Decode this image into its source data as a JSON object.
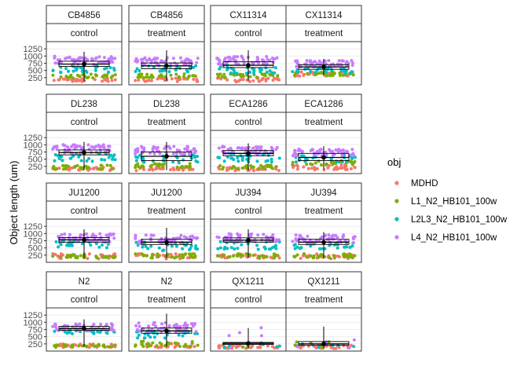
{
  "chart_data": {
    "type": "scatter",
    "title": "",
    "xlabel": "",
    "ylabel": "Object length (um)",
    "ylim": [
      0,
      1500
    ],
    "yticks": [
      250,
      500,
      750,
      1000,
      1250
    ],
    "grid": true,
    "legend": {
      "title": "obj",
      "placement": "right",
      "entries": [
        {
          "name": "MDHD",
          "color": "#F8766D"
        },
        {
          "name": "L1_N2_HB101_100w",
          "color": "#7CAE00"
        },
        {
          "name": "L2L3_N2_HB101_100w",
          "color": "#00BFC4"
        },
        {
          "name": "L4_N2_HB101_100w",
          "color": "#C77CFF"
        }
      ]
    },
    "panels": [
      {
        "strain": "CB4856",
        "condition": "control",
        "median": 720,
        "box": [
          640,
          820
        ],
        "whisker": [
          120,
          1150
        ],
        "bands": {
          "MDHD": [
            100,
            220
          ],
          "L1_N2_HB101_100w": [
            240,
            380
          ],
          "L2L3_N2_HB101_100w": [
            400,
            700
          ],
          "L4_N2_HB101_100w": [
            700,
            1000
          ]
        }
      },
      {
        "strain": "CB4856",
        "condition": "treatment",
        "median": 660,
        "box": [
          560,
          760
        ],
        "whisker": [
          130,
          1200
        ],
        "bands": {
          "MDHD": [
            110,
            230
          ],
          "L1_N2_HB101_100w": [
            250,
            390
          ],
          "L2L3_N2_HB101_100w": [
            420,
            680
          ],
          "L4_N2_HB101_100w": [
            680,
            950
          ]
        }
      },
      {
        "strain": "CX11314",
        "condition": "control",
        "median": 680,
        "box": [
          600,
          800
        ],
        "whisker": [
          150,
          1200
        ],
        "bands": {
          "MDHD": [
            100,
            240
          ],
          "L1_N2_HB101_100w": [
            250,
            380
          ],
          "L2L3_N2_HB101_100w": [
            400,
            720
          ],
          "L4_N2_HB101_100w": [
            700,
            1000
          ]
        }
      },
      {
        "strain": "CX11314",
        "condition": "treatment",
        "median": 620,
        "box": [
          540,
          700
        ],
        "whisker": [
          350,
          900
        ],
        "bands": {
          "MDHD": [
            300,
            450
          ],
          "L1_N2_HB101_100w": [
            320,
            460
          ],
          "L2L3_N2_HB101_100w": [
            400,
            650
          ],
          "L4_N2_HB101_100w": [
            620,
            850
          ]
        }
      },
      {
        "strain": "DL238",
        "condition": "control",
        "median": 730,
        "box": [
          650,
          820
        ],
        "whisker": [
          120,
          1100
        ],
        "bands": {
          "MDHD": [
            100,
            220
          ],
          "L1_N2_HB101_100w": [
            150,
            300
          ],
          "L2L3_N2_HB101_100w": [
            400,
            700
          ],
          "L4_N2_HB101_100w": [
            700,
            1000
          ]
        }
      },
      {
        "strain": "DL238",
        "condition": "treatment",
        "median": 600,
        "box": [
          450,
          750
        ],
        "whisker": [
          120,
          1100
        ],
        "bands": {
          "MDHD": [
            100,
            220
          ],
          "L1_N2_HB101_100w": [
            200,
            350
          ],
          "L2L3_N2_HB101_100w": [
            350,
            650
          ],
          "L4_N2_HB101_100w": [
            650,
            950
          ]
        }
      },
      {
        "strain": "ECA1286",
        "condition": "control",
        "median": 700,
        "box": [
          620,
          800
        ],
        "whisker": [
          120,
          1050
        ],
        "bands": {
          "MDHD": [
            100,
            250
          ],
          "L1_N2_HB101_100w": [
            150,
            300
          ],
          "L2L3_N2_HB101_100w": [
            400,
            700
          ],
          "L4_N2_HB101_100w": [
            700,
            950
          ]
        }
      },
      {
        "strain": "ECA1286",
        "condition": "treatment",
        "median": 560,
        "box": [
          450,
          700
        ],
        "whisker": [
          150,
          950
        ],
        "bands": {
          "MDHD": [
            120,
            300
          ],
          "L1_N2_HB101_100w": [
            300,
            450
          ],
          "L2L3_N2_HB101_100w": [
            400,
            650
          ],
          "L4_N2_HB101_100w": [
            600,
            850
          ]
        }
      },
      {
        "strain": "JU1200",
        "condition": "control",
        "median": 780,
        "box": [
          700,
          860
        ],
        "whisker": [
          150,
          1150
        ],
        "bands": {
          "MDHD": [
            120,
            300
          ],
          "L1_N2_HB101_100w": [
            150,
            250
          ],
          "L2L3_N2_HB101_100w": [
            500,
            750
          ],
          "L4_N2_HB101_100w": [
            700,
            1000
          ]
        }
      },
      {
        "strain": "JU1200",
        "condition": "treatment",
        "median": 700,
        "box": [
          620,
          800
        ],
        "whisker": [
          150,
          1200
        ],
        "bands": {
          "MDHD": [
            120,
            300
          ],
          "L1_N2_HB101_100w": [
            150,
            300
          ],
          "L2L3_N2_HB101_100w": [
            400,
            700
          ],
          "L4_N2_HB101_100w": [
            650,
            950
          ]
        }
      },
      {
        "strain": "JU394",
        "condition": "control",
        "median": 770,
        "box": [
          700,
          850
        ],
        "whisker": [
          150,
          1150
        ],
        "bands": {
          "MDHD": [
            120,
            300
          ],
          "L1_N2_HB101_100w": [
            150,
            300
          ],
          "L2L3_N2_HB101_100w": [
            450,
            750
          ],
          "L4_N2_HB101_100w": [
            700,
            1000
          ]
        }
      },
      {
        "strain": "JU394",
        "condition": "treatment",
        "median": 700,
        "box": [
          620,
          800
        ],
        "whisker": [
          150,
          1050
        ],
        "bands": {
          "MDHD": [
            120,
            300
          ],
          "L1_N2_HB101_100w": [
            150,
            300
          ],
          "L2L3_N2_HB101_100w": [
            450,
            700
          ],
          "L4_N2_HB101_100w": [
            650,
            950
          ]
        }
      },
      {
        "strain": "N2",
        "condition": "control",
        "median": 780,
        "box": [
          720,
          860
        ],
        "whisker": [
          150,
          1100
        ],
        "bands": {
          "MDHD": [
            120,
            250
          ],
          "L1_N2_HB101_100w": [
            130,
            220
          ],
          "L2L3_N2_HB101_100w": [
            600,
            750
          ],
          "L4_N2_HB101_100w": [
            700,
            950
          ]
        }
      },
      {
        "strain": "N2",
        "condition": "treatment",
        "median": 700,
        "box": [
          620,
          800
        ],
        "whisker": [
          150,
          1300
        ],
        "bands": {
          "MDHD": [
            120,
            300
          ],
          "L1_N2_HB101_100w": [
            150,
            350
          ],
          "L2L3_N2_HB101_100w": [
            450,
            700
          ],
          "L4_N2_HB101_100w": [
            650,
            1000
          ]
        }
      },
      {
        "strain": "QX1211",
        "condition": "control",
        "median": 270,
        "box": [
          230,
          300
        ],
        "whisker": [
          100,
          800
        ],
        "bands": {
          "MDHD": [
            90,
            200
          ],
          "L1_N2_HB101_100w": [
            100,
            250
          ],
          "L2L3_N2_HB101_100w": [
            100,
            250
          ],
          "L4_N2_HB101_100w": [
            100,
            900
          ]
        }
      },
      {
        "strain": "QX1211",
        "condition": "treatment",
        "median": 250,
        "box": [
          200,
          330
        ],
        "whisker": [
          100,
          850
        ],
        "bands": {
          "MDHD": [
            90,
            200
          ],
          "L1_N2_HB101_100w": [
            100,
            350
          ],
          "L2L3_N2_HB101_100w": [
            100,
            250
          ],
          "L4_N2_HB101_100w": [
            100,
            400
          ]
        }
      }
    ]
  }
}
